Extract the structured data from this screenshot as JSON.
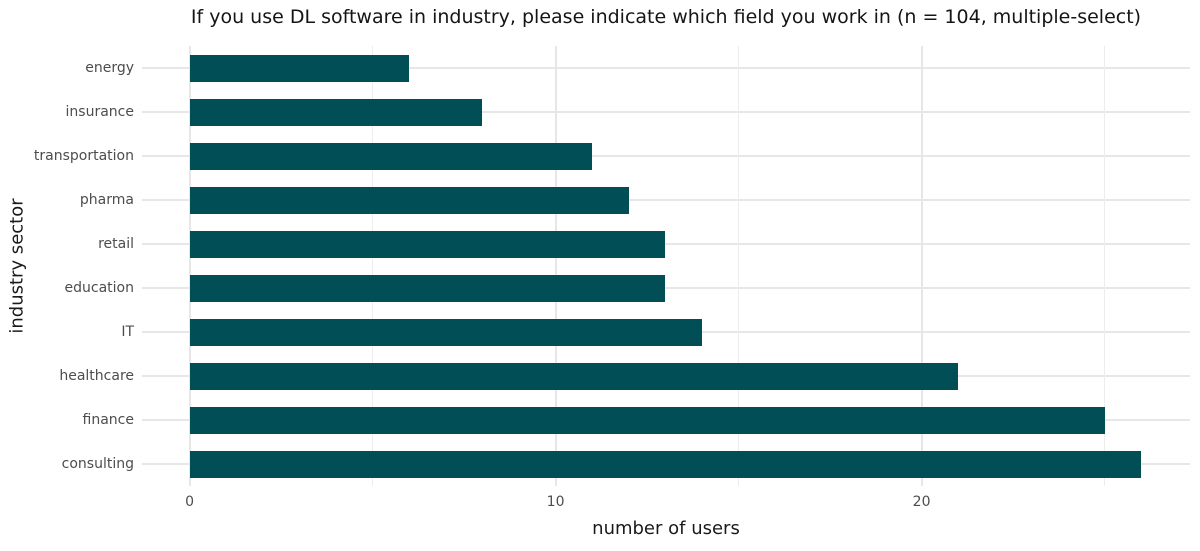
{
  "chart_data": {
    "type": "bar",
    "orientation": "horizontal",
    "title": "If you use DL software in industry, please indicate which field you work in (n = 104, multiple-select)",
    "xlabel": "number of users",
    "ylabel": "industry sector",
    "categories": [
      "energy",
      "insurance",
      "transportation",
      "pharma",
      "retail",
      "education",
      "IT",
      "healthcare",
      "finance",
      "consulting"
    ],
    "values": [
      6,
      8,
      11,
      12,
      13,
      13,
      14,
      21,
      25,
      26
    ],
    "xlim": [
      0,
      27.3
    ],
    "x_major_ticks": [
      0,
      10,
      20
    ],
    "x_minor_ticks": [
      5,
      15,
      25
    ],
    "grid": true,
    "legend": "none",
    "bar_color": "#014E57",
    "grid_major_color": "#e7e7e7",
    "grid_minor_color": "#ededed",
    "axis_text_color": "#4d4d4d",
    "title_color": "#151515",
    "background": "#ffffff"
  }
}
